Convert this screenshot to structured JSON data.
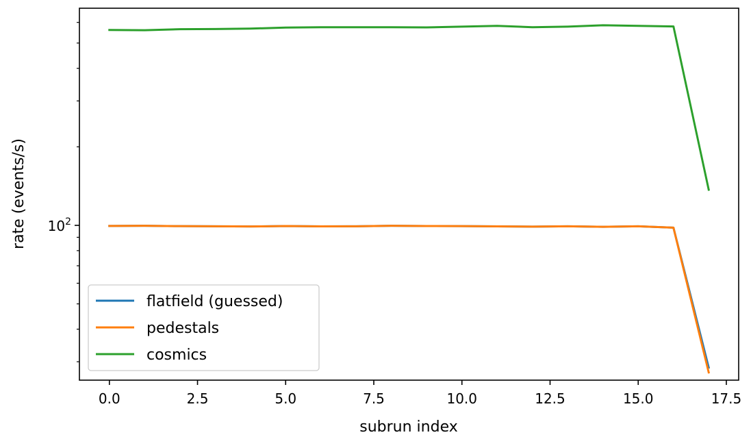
{
  "chart_data": {
    "type": "line",
    "xlabel": "subrun index",
    "ylabel": "rate (events/s)",
    "yscale": "log",
    "xlim": [
      -0.85,
      17.85
    ],
    "ylim": [
      25.5,
      680
    ],
    "x_ticks": [
      0.0,
      2.5,
      5.0,
      7.5,
      10.0,
      12.5,
      15.0,
      17.5
    ],
    "x_tick_labels": [
      "0.0",
      "2.5",
      "5.0",
      "7.5",
      "10.0",
      "12.5",
      "15.0",
      "17.5"
    ],
    "y_major_ticks": [
      100
    ],
    "y_major_tick_labels": [
      {
        "base": "10",
        "exp": "2"
      }
    ],
    "y_minor_ticks": [
      30,
      40,
      50,
      60,
      70,
      80,
      90,
      200,
      300,
      400,
      500,
      600
    ],
    "grid": false,
    "legend_position": "lower-left",
    "x": [
      0,
      1,
      2,
      3,
      4,
      5,
      6,
      7,
      8,
      9,
      10,
      11,
      12,
      13,
      14,
      15,
      16,
      17
    ],
    "series": [
      {
        "name": "flatfield (guessed)",
        "color": "#1f77b4",
        "values": [
          99.5,
          99.6,
          99.3,
          99.2,
          99.0,
          99.4,
          99.1,
          99.2,
          99.6,
          99.4,
          99.3,
          99.1,
          98.9,
          99.2,
          98.7,
          99.2,
          98.0,
          28.5
        ]
      },
      {
        "name": "pedestals",
        "color": "#ff7f0e",
        "values": [
          99.5,
          99.6,
          99.3,
          99.2,
          99.0,
          99.4,
          99.1,
          99.2,
          99.6,
          99.4,
          99.3,
          99.1,
          98.9,
          99.2,
          98.7,
          99.2,
          98.0,
          27.3
        ]
      },
      {
        "name": "cosmics",
        "color": "#2ca02c",
        "values": [
          561,
          560,
          565,
          566,
          568,
          573,
          575,
          575,
          575,
          574,
          578,
          582,
          575,
          578,
          585,
          582,
          579,
          137
        ]
      }
    ]
  }
}
